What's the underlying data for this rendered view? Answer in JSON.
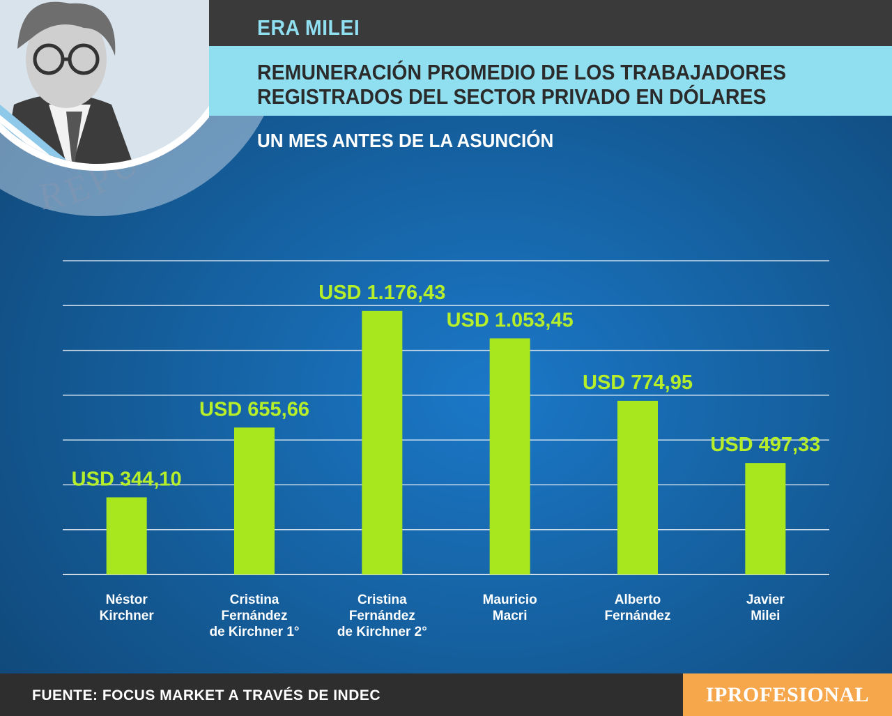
{
  "header": {
    "kicker": "ERA MILEI",
    "title": "REMUNERACIÓN PROMEDIO DE LOS TRABAJADORES REGISTRADOS DEL SECTOR PRIVADO EN DÓLARES",
    "subtitle": "UN MES ANTES DE LA ASUNCIÓN",
    "seal_text": "REPÚBLICA ARGENTINA · NACIÓN"
  },
  "colors": {
    "bar": "#a8e61e",
    "value_label": "#b7ee2a",
    "grid": "#dfe9f2",
    "header_dark": "#3a3a3a",
    "header_light": "#8fdff0",
    "brand": "#f6a64b"
  },
  "chart_data": {
    "type": "bar",
    "categories": [
      [
        "Néstor",
        "Kirchner"
      ],
      [
        "Cristina",
        "Fernández",
        "de Kirchner 1°"
      ],
      [
        "Cristina",
        "Fernández",
        "de Kirchner 2°"
      ],
      [
        "Mauricio",
        "Macri"
      ],
      [
        "Alberto",
        "Fernández"
      ],
      [
        "Javier",
        "Milei"
      ]
    ],
    "values": [
      344.1,
      655.66,
      1176.43,
      1053.45,
      774.95,
      497.33
    ],
    "value_labels": [
      "USD 344,10",
      "USD 655,66",
      "USD 1.176,43",
      "USD 1.053,45",
      "USD 774,95",
      "USD 497,33"
    ],
    "ylim": [
      0,
      1400
    ],
    "grid": true,
    "grid_step": 200,
    "xlabel": "",
    "ylabel": ""
  },
  "footer": {
    "source": "FUENTE: FOCUS MARKET A TRAVÉS DE INDEC",
    "brand": "IPROFESIONAL"
  }
}
